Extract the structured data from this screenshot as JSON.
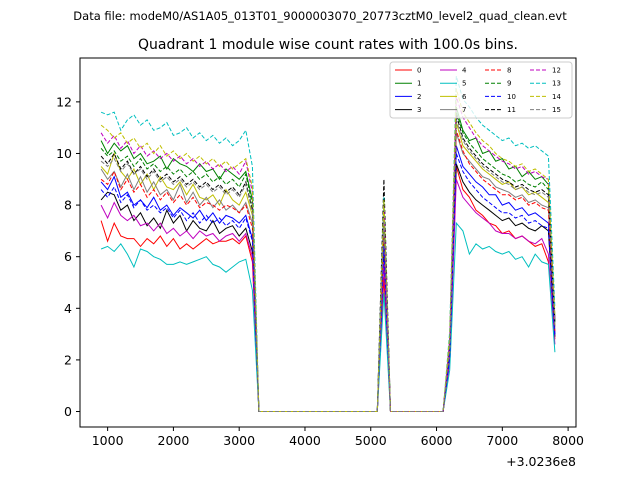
{
  "suptitle": "Data file: modeM0/AS1A05_013T01_9000003070_20773cztM0_level2_quad_clean.evt",
  "chart_data": {
    "type": "line",
    "title": "Quadrant 1 module wise count rates with 100.0s bins.",
    "xlabel": "",
    "ylabel": "",
    "x_offset_label": "+3.0236e8",
    "xlim": [
      580,
      8120
    ],
    "ylim": [
      -0.6,
      13.7
    ],
    "xticks": [
      1000,
      2000,
      3000,
      4000,
      5000,
      6000,
      7000,
      8000
    ],
    "yticks": [
      0,
      2,
      4,
      6,
      8,
      10,
      12
    ],
    "legend_position": "upper-right",
    "legend_columns": 4,
    "x": [
      900,
      1000,
      1100,
      1200,
      1300,
      1400,
      1500,
      1600,
      1700,
      1800,
      1900,
      2000,
      2100,
      2200,
      2300,
      2400,
      2500,
      2600,
      2700,
      2800,
      2900,
      3000,
      3100,
      3200,
      3300,
      3400,
      5100,
      5200,
      5300,
      6100,
      6200,
      6300,
      6400,
      6500,
      6600,
      6700,
      6800,
      6900,
      7000,
      7100,
      7200,
      7300,
      7400,
      7500,
      7600,
      7700,
      7800
    ],
    "series": [
      {
        "name": "0",
        "color": "#ff0000",
        "dash": "solid",
        "values": [
          7.4,
          6.6,
          7.3,
          6.8,
          6.7,
          6.7,
          6.4,
          6.7,
          6.5,
          6.8,
          6.4,
          6.7,
          6.3,
          6.5,
          6.3,
          6.5,
          6.7,
          6.5,
          6.6,
          6.6,
          6.7,
          6.5,
          6.8,
          5.8,
          0,
          0,
          0,
          5.2,
          0,
          0,
          2.0,
          9.5,
          8.6,
          8.3,
          7.8,
          7.6,
          7.3,
          7.2,
          6.9,
          7.0,
          6.7,
          6.8,
          6.6,
          6.4,
          6.5,
          5.8,
          2.8
        ]
      },
      {
        "name": "1",
        "color": "#008000",
        "dash": "solid",
        "values": [
          10.5,
          10.0,
          10.4,
          10.1,
          10.3,
          9.8,
          10.0,
          9.6,
          9.7,
          9.9,
          9.4,
          9.8,
          9.6,
          9.5,
          9.3,
          9.6,
          9.3,
          9.4,
          9.0,
          9.4,
          9.2,
          9.0,
          9.3,
          8.2,
          0,
          0,
          0,
          7.8,
          0,
          0,
          2.7,
          11.8,
          10.9,
          10.5,
          10.6,
          10.0,
          10.1,
          9.7,
          9.8,
          9.4,
          9.5,
          9.1,
          9.3,
          9.0,
          9.1,
          8.8,
          3.6
        ]
      },
      {
        "name": "2",
        "color": "#0000ff",
        "dash": "solid",
        "values": [
          8.9,
          8.6,
          9.1,
          8.3,
          8.5,
          8.0,
          8.2,
          7.9,
          8.3,
          7.8,
          8.0,
          7.6,
          7.9,
          7.7,
          7.5,
          7.8,
          7.4,
          7.7,
          7.3,
          7.6,
          7.5,
          7.3,
          7.6,
          6.7,
          0,
          0,
          0,
          6.6,
          0,
          0,
          2.2,
          10.3,
          9.5,
          9.2,
          8.9,
          8.7,
          8.4,
          8.4,
          8.0,
          8.1,
          7.8,
          7.9,
          7.6,
          7.7,
          7.5,
          7.3,
          3.0
        ]
      },
      {
        "name": "3",
        "color": "#000000",
        "dash": "solid",
        "values": [
          8.2,
          8.5,
          8.4,
          7.8,
          8.0,
          7.4,
          7.7,
          7.2,
          7.5,
          7.1,
          7.8,
          7.3,
          7.6,
          7.0,
          7.4,
          7.1,
          7.0,
          7.4,
          6.9,
          7.1,
          7.2,
          6.8,
          7.1,
          6.2,
          0,
          0,
          0,
          6.0,
          0,
          0,
          2.0,
          9.6,
          8.9,
          8.5,
          8.2,
          8.0,
          7.8,
          7.6,
          7.4,
          7.5,
          7.2,
          7.3,
          7.1,
          7.0,
          7.2,
          7.0,
          2.9
        ]
      },
      {
        "name": "4",
        "color": "#bf00bf",
        "dash": "solid",
        "values": [
          8.0,
          7.5,
          8.1,
          7.6,
          7.4,
          7.6,
          7.2,
          7.3,
          7.0,
          7.3,
          6.9,
          7.1,
          6.8,
          7.0,
          6.7,
          7.0,
          6.8,
          6.9,
          6.6,
          6.8,
          6.9,
          6.6,
          6.9,
          6.0,
          0,
          0,
          0,
          5.8,
          0,
          0,
          1.9,
          9.0,
          8.3,
          8.0,
          7.7,
          7.5,
          7.3,
          7.0,
          6.9,
          6.9,
          6.7,
          6.8,
          6.6,
          6.5,
          6.7,
          6.1,
          2.6
        ]
      },
      {
        "name": "5",
        "color": "#00bfbf",
        "dash": "solid",
        "values": [
          6.3,
          6.4,
          6.2,
          6.5,
          6.1,
          5.6,
          6.3,
          6.2,
          6.0,
          5.9,
          5.7,
          5.7,
          5.8,
          5.7,
          5.8,
          5.9,
          6.0,
          5.7,
          5.6,
          5.4,
          5.6,
          5.8,
          5.9,
          4.7,
          0,
          0,
          0,
          4.6,
          0,
          0,
          1.6,
          7.3,
          7.0,
          6.1,
          6.5,
          6.3,
          6.4,
          6.2,
          6.1,
          6.2,
          5.9,
          6.0,
          5.6,
          6.1,
          5.8,
          5.7,
          2.3
        ]
      },
      {
        "name": "6",
        "color": "#bfbf00",
        "dash": "solid",
        "values": [
          9.5,
          9.2,
          10.0,
          9.3,
          9.0,
          9.4,
          8.8,
          9.2,
          8.6,
          9.1,
          8.7,
          8.6,
          8.9,
          8.4,
          8.8,
          8.3,
          8.2,
          8.4,
          8.0,
          8.6,
          8.2,
          8.0,
          8.5,
          7.6,
          0,
          0,
          0,
          7.2,
          0,
          0,
          2.4,
          11.2,
          10.3,
          10.0,
          9.7,
          9.4,
          9.2,
          9.0,
          8.8,
          8.9,
          8.6,
          8.7,
          8.4,
          8.5,
          8.3,
          8.1,
          3.3
        ]
      },
      {
        "name": "7",
        "color": "#7f7f7f",
        "dash": "solid",
        "values": [
          9.4,
          9.0,
          9.3,
          8.7,
          9.2,
          8.6,
          9.1,
          8.5,
          8.9,
          8.4,
          8.6,
          8.2,
          8.8,
          8.1,
          8.5,
          8.0,
          8.3,
          7.9,
          8.2,
          7.8,
          8.0,
          7.7,
          8.1,
          7.3,
          0,
          0,
          0,
          7.0,
          0,
          0,
          2.3,
          10.8,
          10.0,
          9.7,
          9.4,
          9.1,
          9.0,
          8.7,
          8.6,
          8.5,
          8.3,
          8.4,
          8.1,
          8.2,
          8.0,
          7.9,
          3.2
        ]
      },
      {
        "name": "8",
        "color": "#ff0000",
        "dash": "dashed",
        "values": [
          9.0,
          8.8,
          9.3,
          8.6,
          9.0,
          8.5,
          8.8,
          8.3,
          8.6,
          8.2,
          8.5,
          8.1,
          8.4,
          8.0,
          8.3,
          7.9,
          8.1,
          8.0,
          7.8,
          8.0,
          7.9,
          7.7,
          8.0,
          7.1,
          0,
          0,
          0,
          6.9,
          0,
          0,
          2.3,
          10.9,
          10.1,
          9.6,
          9.3,
          9.0,
          8.8,
          8.6,
          8.4,
          8.4,
          8.2,
          8.3,
          8.0,
          8.1,
          7.9,
          7.8,
          3.1
        ]
      },
      {
        "name": "9",
        "color": "#008000",
        "dash": "dashed",
        "values": [
          10.2,
          9.9,
          10.1,
          9.7,
          9.9,
          9.5,
          9.8,
          9.4,
          9.6,
          9.3,
          9.5,
          9.2,
          9.4,
          9.1,
          9.3,
          9.0,
          9.2,
          8.9,
          9.1,
          8.8,
          9.0,
          8.7,
          9.2,
          8.0,
          0,
          0,
          0,
          7.6,
          0,
          0,
          2.6,
          11.6,
          10.8,
          10.4,
          10.1,
          9.8,
          9.6,
          9.4,
          9.2,
          9.1,
          8.9,
          9.0,
          8.8,
          8.7,
          8.9,
          8.6,
          3.5
        ]
      },
      {
        "name": "10",
        "color": "#0000ff",
        "dash": "dashed",
        "values": [
          8.6,
          8.3,
          8.7,
          8.1,
          8.4,
          7.9,
          8.2,
          7.8,
          8.0,
          7.7,
          7.9,
          7.5,
          7.8,
          7.4,
          7.7,
          7.3,
          7.6,
          7.3,
          7.5,
          7.2,
          7.4,
          7.1,
          7.5,
          6.6,
          0,
          0,
          0,
          6.4,
          0,
          0,
          2.1,
          10.0,
          9.3,
          8.9,
          8.6,
          8.3,
          8.1,
          7.9,
          7.7,
          7.7,
          7.5,
          7.6,
          7.3,
          7.4,
          7.2,
          7.1,
          2.9
        ]
      },
      {
        "name": "11",
        "color": "#000000",
        "dash": "dashed",
        "values": [
          9.9,
          9.6,
          10.0,
          9.4,
          9.7,
          9.2,
          9.5,
          9.1,
          9.4,
          9.0,
          9.2,
          8.9,
          9.1,
          8.8,
          9.0,
          8.7,
          8.9,
          8.6,
          8.8,
          8.5,
          8.7,
          8.4,
          8.9,
          7.8,
          0,
          0,
          0,
          9.0,
          0,
          0,
          2.6,
          11.5,
          10.6,
          10.2,
          9.9,
          9.6,
          9.4,
          9.2,
          9.0,
          8.9,
          8.7,
          8.8,
          8.6,
          8.5,
          8.6,
          8.4,
          3.4
        ]
      },
      {
        "name": "12",
        "color": "#bf00bf",
        "dash": "dashed",
        "values": [
          10.8,
          10.4,
          10.7,
          10.2,
          10.5,
          10.0,
          10.3,
          9.9,
          10.1,
          9.8,
          10.0,
          9.7,
          9.9,
          9.6,
          9.8,
          9.5,
          9.7,
          9.4,
          9.6,
          9.3,
          9.5,
          9.2,
          9.7,
          8.5,
          0,
          0,
          0,
          8.1,
          0,
          0,
          2.8,
          12.2,
          11.4,
          11.0,
          10.6,
          10.3,
          10.1,
          9.9,
          9.7,
          9.6,
          9.4,
          9.5,
          9.2,
          9.3,
          9.1,
          9.0,
          3.6
        ]
      },
      {
        "name": "13",
        "color": "#00bfbf",
        "dash": "dashed",
        "values": [
          11.6,
          11.5,
          11.6,
          10.9,
          11.3,
          11.5,
          11.1,
          11.3,
          10.9,
          11.0,
          11.2,
          10.7,
          10.8,
          11.0,
          10.6,
          10.8,
          10.5,
          10.7,
          10.4,
          10.6,
          10.3,
          10.5,
          10.9,
          9.5,
          0,
          0,
          0,
          8.3,
          0,
          0,
          3.1,
          13.0,
          12.1,
          11.8,
          11.4,
          11.1,
          10.9,
          10.7,
          10.5,
          10.6,
          10.3,
          10.4,
          10.2,
          10.3,
          10.1,
          9.9,
          4.0
        ]
      },
      {
        "name": "14",
        "color": "#bfbf00",
        "dash": "dashed",
        "values": [
          11.1,
          10.9,
          10.6,
          10.8,
          10.4,
          10.6,
          10.2,
          10.4,
          10.0,
          10.3,
          9.9,
          10.1,
          9.8,
          10.0,
          9.7,
          9.9,
          9.6,
          9.8,
          9.5,
          9.7,
          9.4,
          9.6,
          9.8,
          8.7,
          0,
          0,
          0,
          8.2,
          0,
          0,
          2.9,
          12.5,
          11.6,
          11.2,
          10.8,
          10.5,
          10.3,
          10.0,
          9.8,
          9.7,
          9.5,
          9.6,
          9.3,
          9.4,
          9.2,
          9.0,
          3.7
        ]
      },
      {
        "name": "15",
        "color": "#7f7f7f",
        "dash": "dashed",
        "values": [
          9.7,
          9.5,
          9.8,
          9.3,
          9.6,
          9.2,
          9.4,
          9.0,
          9.3,
          8.9,
          9.1,
          8.8,
          9.0,
          8.7,
          8.9,
          8.6,
          8.8,
          8.5,
          8.7,
          8.4,
          8.6,
          8.3,
          8.8,
          7.7,
          0,
          0,
          0,
          7.4,
          0,
          0,
          2.5,
          11.3,
          10.5,
          10.1,
          9.8,
          9.5,
          9.3,
          9.1,
          8.9,
          8.8,
          8.6,
          8.7,
          8.5,
          8.4,
          8.5,
          8.3,
          3.3
        ]
      }
    ]
  }
}
